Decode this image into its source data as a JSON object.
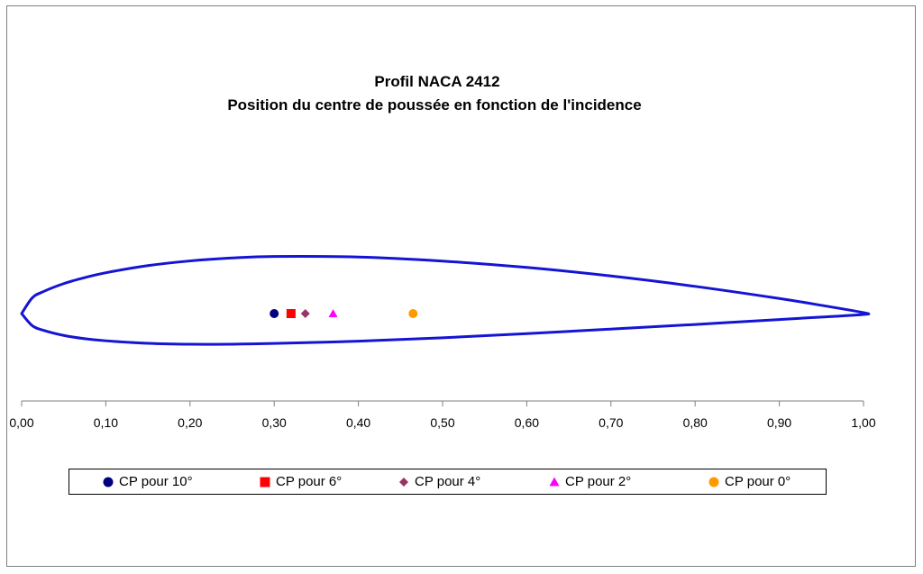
{
  "chart_data": {
    "type": "scatter",
    "title": [
      "Profil NACA 2412",
      "Position du centre de poussée en fonction de l'incidence"
    ],
    "xlabel": "",
    "ylabel": "",
    "xlim": [
      0,
      1
    ],
    "x_ticks": [
      "0,00",
      "0,10",
      "0,20",
      "0,30",
      "0,40",
      "0,50",
      "0,60",
      "0,70",
      "0,80",
      "0,90",
      "1,00"
    ],
    "grid": false,
    "legend_position": "bottom",
    "profile": {
      "color": "#1414d4",
      "upper": [
        [
          0.0,
          0.0
        ],
        [
          0.0125,
          0.0215
        ],
        [
          0.025,
          0.0299
        ],
        [
          0.05,
          0.0413
        ],
        [
          0.075,
          0.0496
        ],
        [
          0.1,
          0.0563
        ],
        [
          0.15,
          0.0661
        ],
        [
          0.2,
          0.0726
        ],
        [
          0.25,
          0.0767
        ],
        [
          0.3,
          0.0788
        ],
        [
          0.4,
          0.078
        ],
        [
          0.5,
          0.0724
        ],
        [
          0.6,
          0.0636
        ],
        [
          0.7,
          0.0518
        ],
        [
          0.8,
          0.0375
        ],
        [
          0.9,
          0.0208
        ],
        [
          0.95,
          0.0114
        ],
        [
          1.0,
          0.0013
        ]
      ],
      "lower": [
        [
          0.0,
          0.0
        ],
        [
          0.0125,
          -0.0165
        ],
        [
          0.025,
          -0.0227
        ],
        [
          0.05,
          -0.0301
        ],
        [
          0.075,
          -0.0346
        ],
        [
          0.1,
          -0.0375
        ],
        [
          0.15,
          -0.041
        ],
        [
          0.2,
          -0.0423
        ],
        [
          0.25,
          -0.0422
        ],
        [
          0.3,
          -0.0412
        ],
        [
          0.4,
          -0.038
        ],
        [
          0.5,
          -0.0334
        ],
        [
          0.6,
          -0.0276
        ],
        [
          0.7,
          -0.0214
        ],
        [
          0.8,
          -0.015
        ],
        [
          0.9,
          -0.0082
        ],
        [
          0.95,
          -0.0048
        ],
        [
          1.0,
          -0.0013
        ]
      ]
    },
    "series": [
      {
        "name": "CP pour 10°",
        "x": 0.3,
        "y": 0.0,
        "marker": "circle",
        "color": "#000080"
      },
      {
        "name": "CP pour 6°",
        "x": 0.32,
        "y": 0.0,
        "marker": "square",
        "color": "#ff0000"
      },
      {
        "name": "CP pour 4°",
        "x": 0.337,
        "y": 0.0,
        "marker": "diamond",
        "color": "#993366"
      },
      {
        "name": "CP pour 2°",
        "x": 0.37,
        "y": 0.0,
        "marker": "triangle",
        "color": "#ff00ff"
      },
      {
        "name": "CP pour 0°",
        "x": 0.465,
        "y": 0.0,
        "marker": "circle",
        "color": "#ff9900"
      }
    ]
  }
}
